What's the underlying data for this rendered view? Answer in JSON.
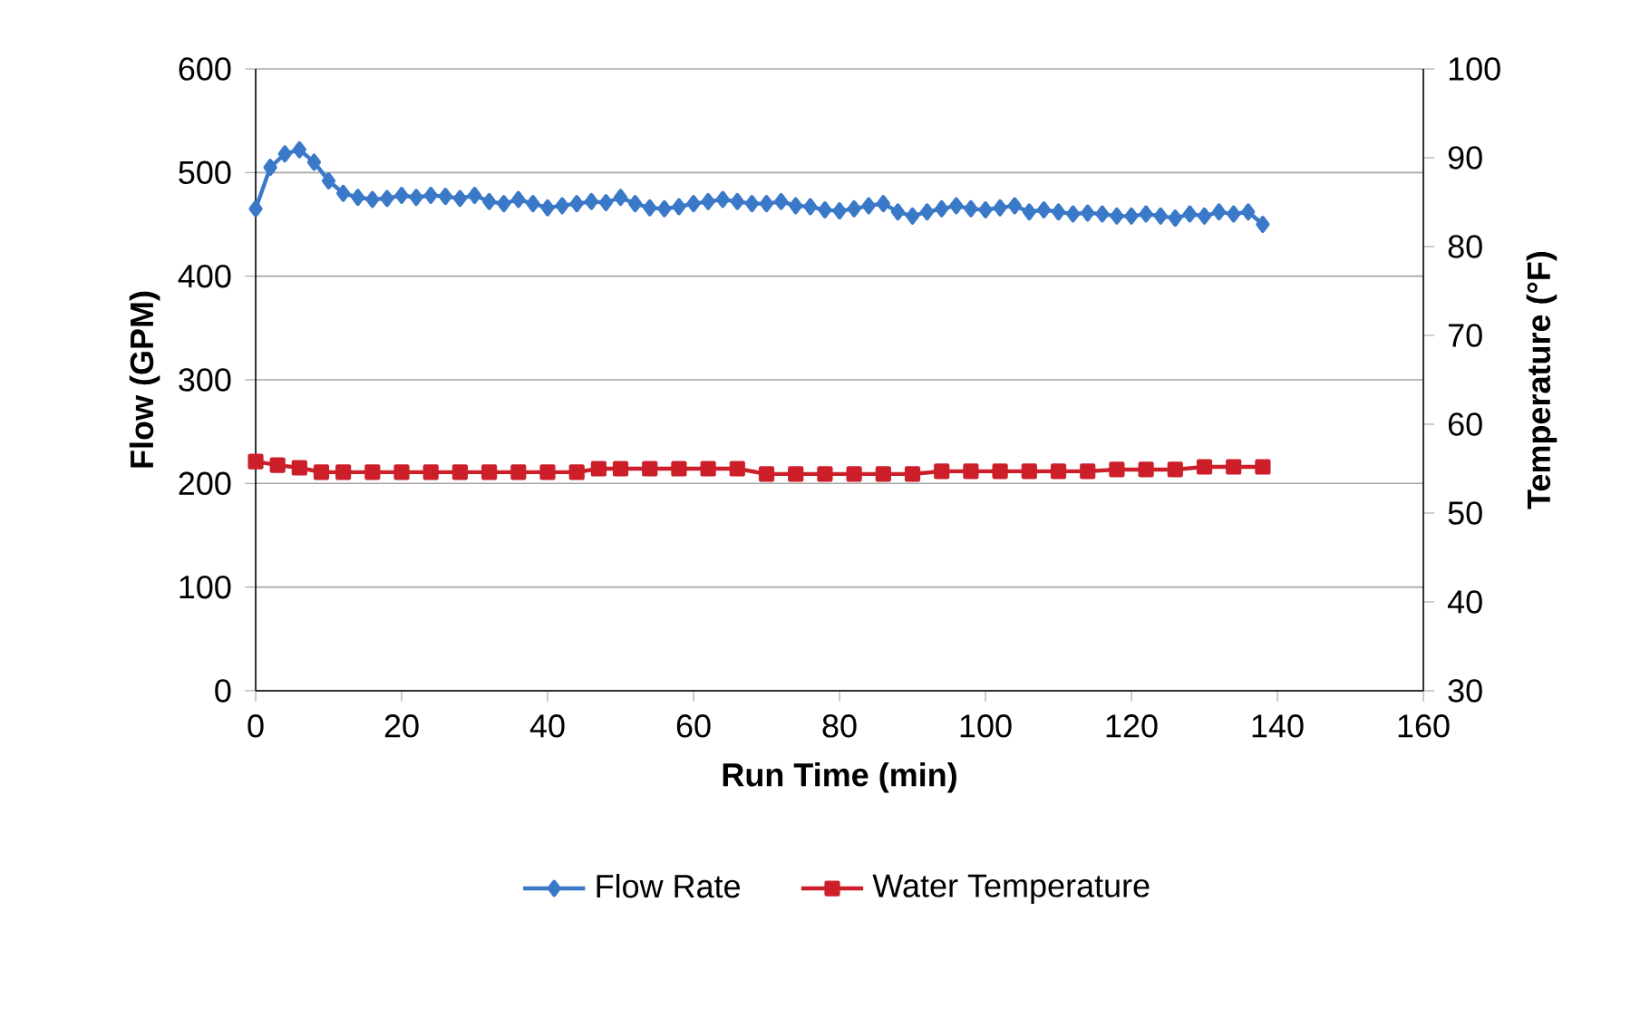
{
  "chart_data": {
    "type": "line",
    "xlabel": "Run Time (min)",
    "ylabel": "Flow (GPM)",
    "y2label": "Temperature (°F)",
    "xlim": [
      0,
      160
    ],
    "xticks": [
      0,
      20,
      40,
      60,
      80,
      100,
      120,
      140,
      160
    ],
    "ylim": [
      0,
      600
    ],
    "yticks": [
      0,
      100,
      200,
      300,
      400,
      500,
      600
    ],
    "y2lim": [
      30,
      100
    ],
    "y2ticks": [
      30,
      40,
      50,
      60,
      70,
      80,
      90,
      100
    ],
    "grid": "y",
    "legend": "bottom",
    "series": [
      {
        "name": "Flow Rate",
        "color": "#3a78c8",
        "marker": "diamond",
        "x": [
          0,
          2,
          4,
          6,
          8,
          10,
          12,
          14,
          16,
          18,
          20,
          22,
          24,
          26,
          28,
          30,
          32,
          34,
          36,
          38,
          40,
          42,
          44,
          46,
          48,
          50,
          52,
          54,
          56,
          58,
          60,
          62,
          64,
          66,
          68,
          70,
          72,
          74,
          76,
          78,
          80,
          82,
          84,
          86,
          88,
          90,
          92,
          94,
          96,
          98,
          100,
          102,
          104,
          106,
          108,
          110,
          112,
          114,
          116,
          118,
          120,
          122,
          124,
          126,
          128,
          130,
          132,
          134,
          136,
          138
        ],
        "values": [
          465,
          505,
          518,
          522,
          510,
          492,
          480,
          476,
          474,
          475,
          478,
          476,
          478,
          477,
          475,
          478,
          472,
          470,
          474,
          470,
          466,
          468,
          470,
          472,
          471,
          476,
          470,
          466,
          465,
          467,
          470,
          472,
          474,
          472,
          470,
          470,
          472,
          468,
          467,
          464,
          463,
          465,
          468,
          470,
          462,
          458,
          462,
          465,
          468,
          465,
          464,
          466,
          468,
          462,
          464,
          462,
          460,
          461,
          460,
          458,
          458,
          460,
          458,
          456,
          460,
          458,
          462,
          460,
          462,
          450
        ]
      },
      {
        "name": "Water Temperature",
        "color": "#cc1f2a",
        "marker": "square",
        "axis": "y2",
        "x": [
          0,
          3,
          6,
          9,
          12,
          16,
          20,
          24,
          28,
          32,
          36,
          40,
          44,
          47,
          50,
          54,
          58,
          62,
          66,
          70,
          74,
          78,
          82,
          86,
          90,
          94,
          98,
          102,
          106,
          110,
          114,
          118,
          122,
          126,
          130,
          134,
          138
        ],
        "values": [
          55.8,
          55.4,
          55.1,
          54.6,
          54.6,
          54.6,
          54.6,
          54.6,
          54.6,
          54.6,
          54.6,
          54.6,
          54.6,
          55.0,
          55.0,
          55.0,
          55.0,
          55.0,
          55.0,
          54.4,
          54.4,
          54.4,
          54.4,
          54.4,
          54.4,
          54.7,
          54.7,
          54.7,
          54.7,
          54.7,
          54.7,
          54.9,
          54.9,
          54.9,
          55.2,
          55.2,
          55.2
        ]
      }
    ]
  }
}
